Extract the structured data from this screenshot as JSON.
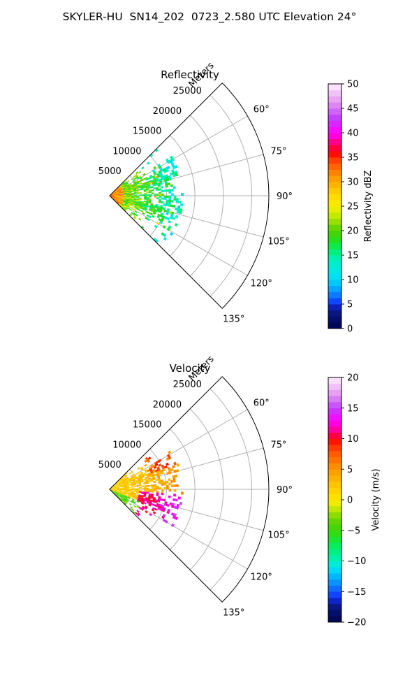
{
  "suptitle": "SKYLER-HU  SN14_202  0723_2.580 UTC Elevation 24°",
  "colors": {
    "grid": "#b0b0b0",
    "frame": "#000000"
  },
  "chart_data": [
    {
      "type": "heatmap",
      "subtype": "polar-sector (radar PPI)",
      "title": "Reflectivity",
      "radial_label": "Meters",
      "radial_ticks": [
        "5000",
        "10000",
        "15000",
        "20000",
        "25000"
      ],
      "r_max": 28000,
      "theta_range_deg": [
        45,
        135
      ],
      "theta_ticks": [
        "60°",
        "75°",
        "90°",
        "105°",
        "120°",
        "135°"
      ],
      "colorbar": {
        "label": "Reflectivity dBZ",
        "range": [
          0,
          50
        ],
        "ticks": [
          "0",
          "5",
          "10",
          "15",
          "20",
          "25",
          "30",
          "35",
          "40",
          "45",
          "50"
        ],
        "colormap": [
          [
            0,
            "#00064a"
          ],
          [
            4,
            "#0a1a8c"
          ],
          [
            5,
            "#1030ff"
          ],
          [
            7,
            "#0e80ff"
          ],
          [
            9,
            "#06c0ff"
          ],
          [
            11,
            "#00e6f0"
          ],
          [
            14,
            "#00f0c0"
          ],
          [
            16,
            "#00f070"
          ],
          [
            18,
            "#22e020"
          ],
          [
            20,
            "#50d000"
          ],
          [
            22,
            "#a0e000"
          ],
          [
            24,
            "#e0f000"
          ],
          [
            26,
            "#ffe600"
          ],
          [
            28,
            "#ffcc00"
          ],
          [
            30,
            "#ffaa00"
          ],
          [
            32,
            "#ff8000"
          ],
          [
            34,
            "#ff5000"
          ],
          [
            36,
            "#ff0000"
          ],
          [
            38,
            "#ff0080"
          ],
          [
            40,
            "#ff00ff"
          ],
          [
            43,
            "#c040ff"
          ],
          [
            46,
            "#e090f0"
          ],
          [
            50,
            "#fff0ff"
          ]
        ]
      },
      "echo_region": {
        "value_range_dbz": [
          10,
          38
        ],
        "dominant_range_dbz": [
          15,
          22
        ],
        "max_range_m": 13000,
        "azimuth_span_deg": [
          45,
          135
        ]
      }
    },
    {
      "type": "heatmap",
      "subtype": "polar-sector (radar PPI)",
      "title": "Velocity",
      "radial_label": "Meters",
      "radial_ticks": [
        "5000",
        "10000",
        "15000",
        "20000",
        "25000"
      ],
      "r_max": 28000,
      "theta_range_deg": [
        45,
        135
      ],
      "theta_ticks": [
        "60°",
        "75°",
        "90°",
        "105°",
        "120°",
        "135°"
      ],
      "colorbar": {
        "label": "Velocity (m/s)",
        "range": [
          -20,
          20
        ],
        "ticks": [
          "−20",
          "−15",
          "−10",
          "−5",
          "0",
          "5",
          "10",
          "15",
          "20"
        ],
        "colormap": [
          [
            -20,
            "#00064a"
          ],
          [
            -17,
            "#0a1a8c"
          ],
          [
            -16,
            "#1030ff"
          ],
          [
            -14,
            "#0e80ff"
          ],
          [
            -12,
            "#00c8ff"
          ],
          [
            -11,
            "#00e6f0"
          ],
          [
            -10,
            "#00f0c0"
          ],
          [
            -8,
            "#00f070"
          ],
          [
            -6,
            "#22e020"
          ],
          [
            -4,
            "#50d000"
          ],
          [
            -2,
            "#a0e000"
          ],
          [
            -1,
            "#e0f000"
          ],
          [
            0,
            "#ffe600"
          ],
          [
            2,
            "#ffcc00"
          ],
          [
            4,
            "#ffaa00"
          ],
          [
            6,
            "#ff8000"
          ],
          [
            8,
            "#ff5000"
          ],
          [
            10,
            "#ff0000"
          ],
          [
            11,
            "#ff0080"
          ],
          [
            13,
            "#ff00ff"
          ],
          [
            15,
            "#c040ff"
          ],
          [
            17,
            "#e090f0"
          ],
          [
            20,
            "#fff0ff"
          ]
        ]
      },
      "echo_region": {
        "value_range_ms": [
          -8,
          15
        ],
        "max_range_m": 13000,
        "azimuth_span_deg": [
          45,
          135
        ]
      }
    }
  ]
}
